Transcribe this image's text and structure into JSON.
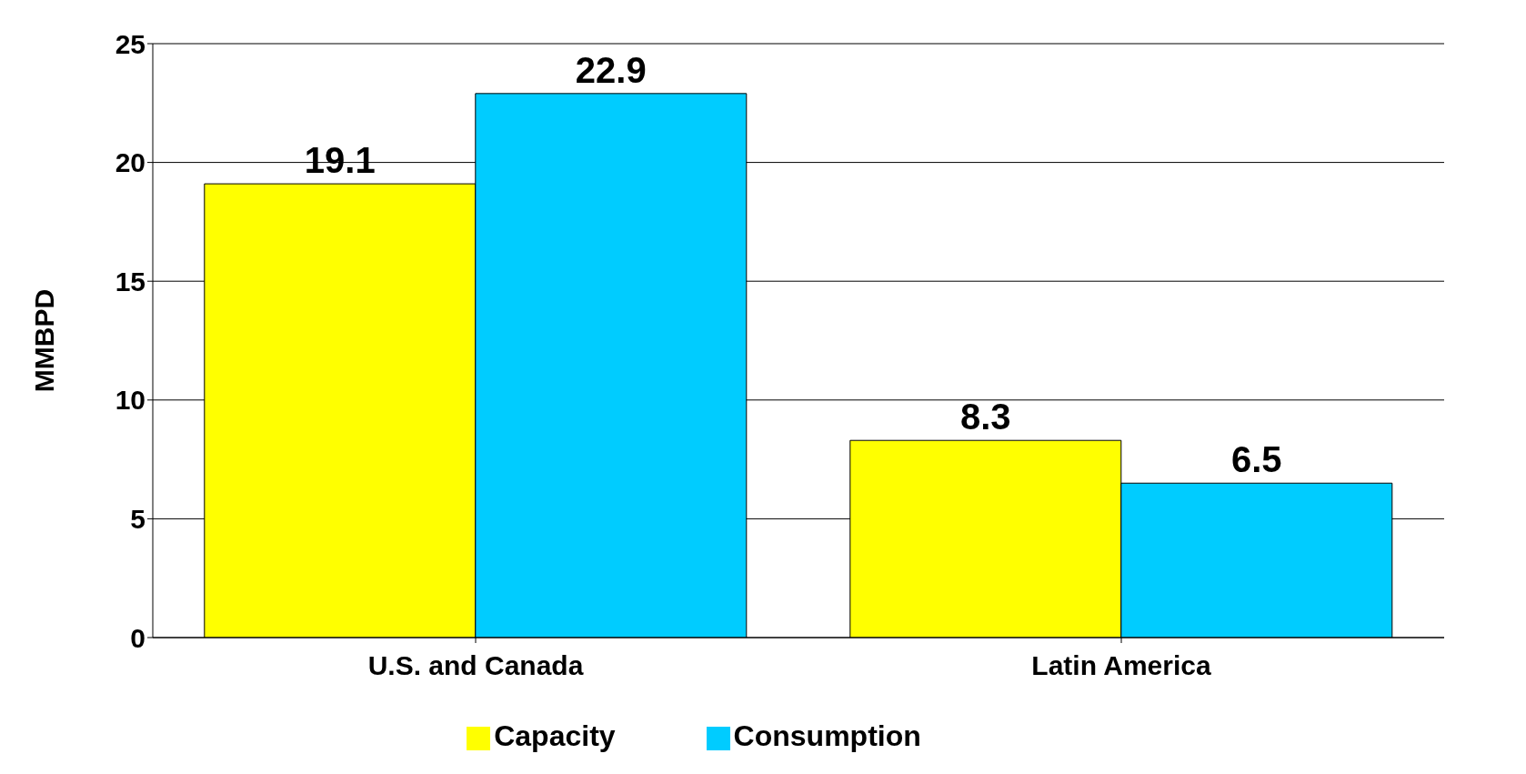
{
  "chart_data": {
    "type": "bar",
    "ylabel": "MMBPD",
    "categories": [
      "U.S. and Canada",
      "Latin America"
    ],
    "series": [
      {
        "name": "Capacity",
        "color": "#ffff00",
        "values": [
          19.1,
          8.3
        ]
      },
      {
        "name": "Consumption",
        "color": "#00ccff",
        "values": [
          22.9,
          6.5
        ]
      }
    ],
    "ylim": [
      0,
      25
    ],
    "yticks": [
      0,
      5,
      10,
      15,
      20,
      25
    ],
    "grid": "y",
    "legend": "bottom",
    "data_labels": true
  }
}
